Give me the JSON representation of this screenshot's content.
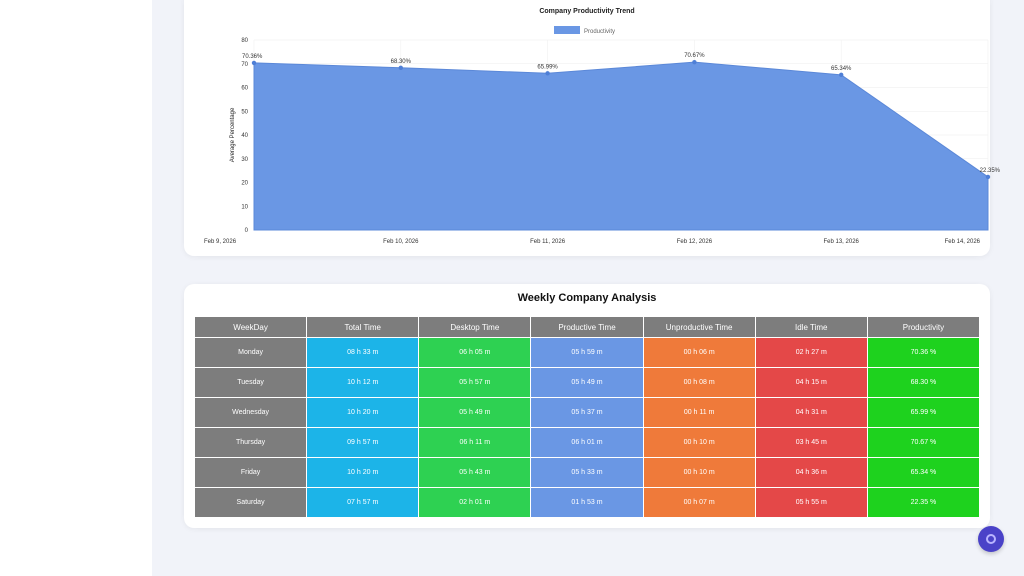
{
  "chart_data": {
    "type": "area",
    "title": "Company Productivity Trend",
    "legend": "Productivity",
    "legend_position": "top",
    "ylabel": "Average Percentage",
    "xlabel": "",
    "ylim": [
      0,
      80
    ],
    "yticks": [
      "0",
      "10",
      "20",
      "30",
      "40",
      "50",
      "60",
      "70",
      "80"
    ],
    "categories": [
      "Feb 9, 2026",
      "Feb 10, 2026",
      "Feb 11, 2026",
      "Feb 12, 2026",
      "Feb 13, 2026",
      "Feb 14, 2026"
    ],
    "values": [
      70.36,
      68.3,
      65.99,
      70.67,
      65.34,
      22.35
    ],
    "value_labels": [
      "70.36%",
      "68.30%",
      "65.99%",
      "70.67%",
      "65.34%",
      "22.35%"
    ],
    "color": "#6a97e4",
    "grid": true
  },
  "table": {
    "title": "Weekly Company Analysis",
    "headers": [
      "WeekDay",
      "Total Time",
      "Desktop Time",
      "Productive Time",
      "Unproductive Time",
      "Idle Time",
      "Productivity"
    ],
    "rows": [
      [
        "Monday",
        "08 h 33 m",
        "06 h 05 m",
        "05 h 59 m",
        "00 h 06 m",
        "02 h 27 m",
        "70.36 %"
      ],
      [
        "Tuesday",
        "10 h 12 m",
        "05 h 57 m",
        "05 h 49 m",
        "00 h 08 m",
        "04 h 15 m",
        "68.30 %"
      ],
      [
        "Wednesday",
        "10 h 20 m",
        "05 h 49 m",
        "05 h 37 m",
        "00 h 11 m",
        "04 h 31 m",
        "65.99 %"
      ],
      [
        "Thursday",
        "09 h 57 m",
        "06 h 11 m",
        "06 h 01 m",
        "00 h 10 m",
        "03 h 45 m",
        "70.67 %"
      ],
      [
        "Friday",
        "10 h 20 m",
        "05 h 43 m",
        "05 h 33 m",
        "00 h 10 m",
        "04 h 36 m",
        "65.34 %"
      ],
      [
        "Saturday",
        "07 h 57 m",
        "02 h 01 m",
        "01 h 53 m",
        "00 h 07 m",
        "05 h 55 m",
        "22.35 %"
      ]
    ]
  },
  "fab": {
    "icon": "settings-icon",
    "color": "#4a42c8"
  }
}
